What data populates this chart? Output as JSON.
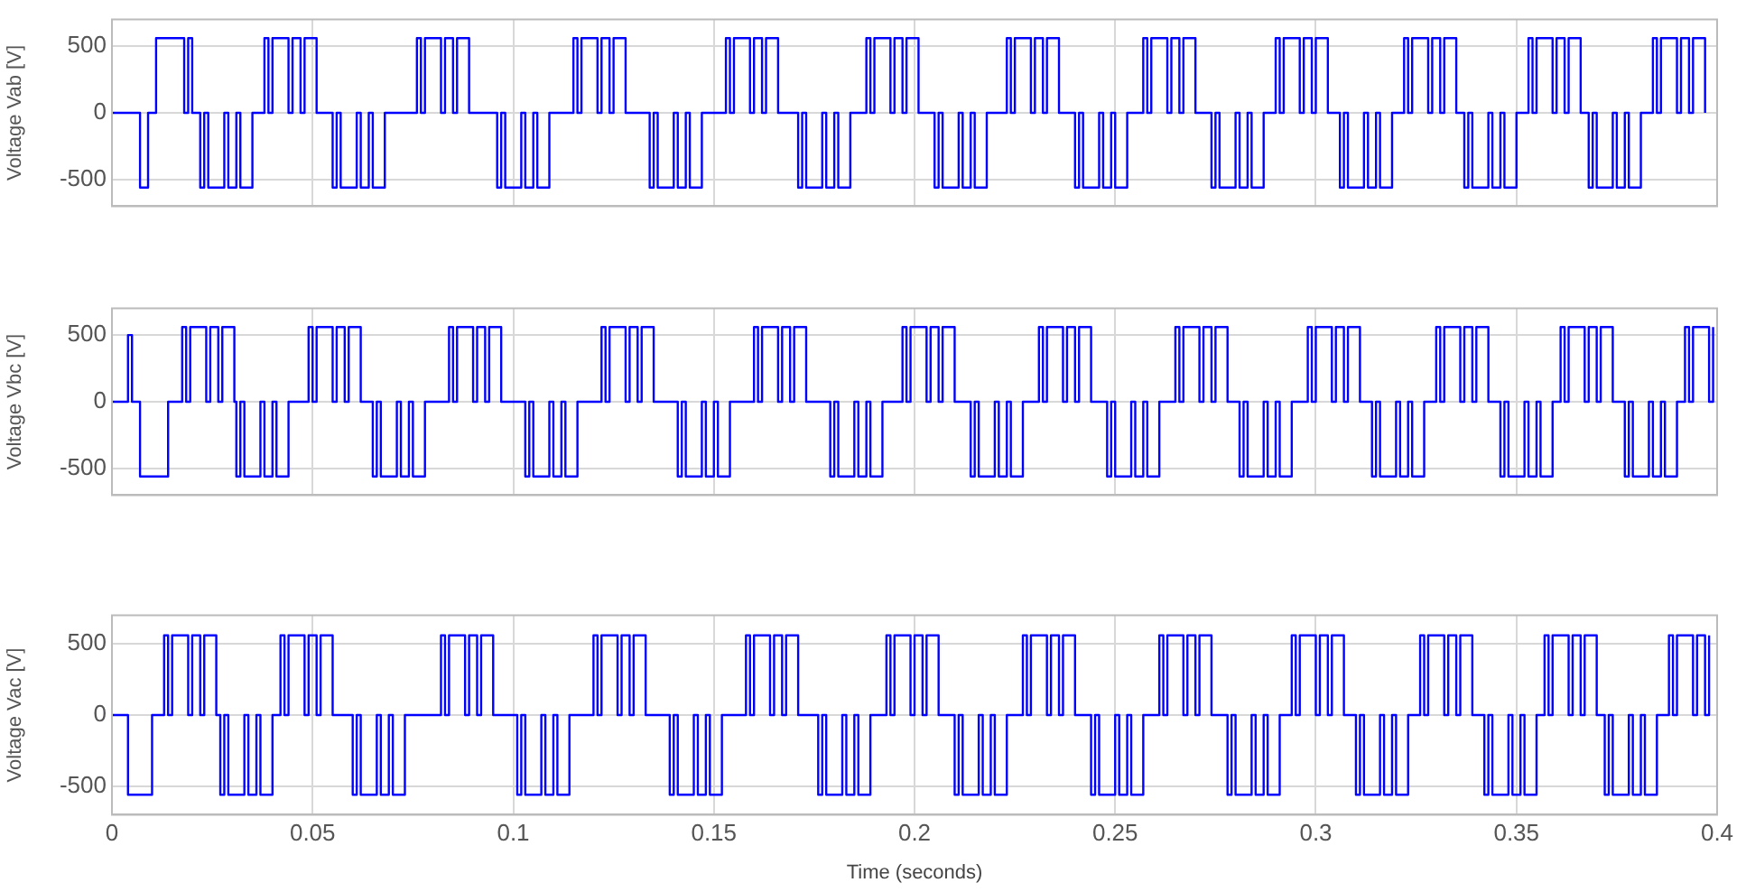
{
  "chart_data": [
    {
      "type": "step",
      "ylabel": "Voltage Vab [V]",
      "color": "#0000ff",
      "xlim": [
        0,
        0.4
      ],
      "xticks": [
        0,
        0.05,
        0.1,
        0.15,
        0.2,
        0.25,
        0.3,
        0.35,
        0.4
      ],
      "ylim": [
        -700,
        700
      ],
      "yticks": [
        -500,
        0,
        500
      ],
      "grid": true,
      "tick_labels": "y",
      "x": [
        0,
        0.007,
        0.009,
        0.011,
        0.018,
        0.019,
        0.02,
        0.022,
        0.023,
        0.024,
        0.028,
        0.029,
        0.031,
        0.032,
        0.035,
        0.038,
        0.039,
        0.04,
        0.044,
        0.045,
        0.047,
        0.048,
        0.051,
        0.055,
        0.056,
        0.057,
        0.061,
        0.062,
        0.064,
        0.065,
        0.068,
        0.076,
        0.077,
        0.078,
        0.082,
        0.083,
        0.085,
        0.086,
        0.089,
        0.096,
        0.097,
        0.098,
        0.102,
        0.103,
        0.105,
        0.106,
        0.109,
        0.115,
        0.116,
        0.117,
        0.121,
        0.122,
        0.124,
        0.125,
        0.128,
        0.134,
        0.135,
        0.136,
        0.14,
        0.141,
        0.143,
        0.144,
        0.147,
        0.153,
        0.154,
        0.155,
        0.159,
        0.16,
        0.162,
        0.163,
        0.166,
        0.171,
        0.172,
        0.173,
        0.177,
        0.178,
        0.18,
        0.181,
        0.184,
        0.188,
        0.189,
        0.19,
        0.194,
        0.195,
        0.197,
        0.198,
        0.201,
        0.205,
        0.206,
        0.207,
        0.211,
        0.212,
        0.214,
        0.215,
        0.218,
        0.223,
        0.224,
        0.225,
        0.229,
        0.23,
        0.232,
        0.233,
        0.236,
        0.24,
        0.241,
        0.242,
        0.246,
        0.247,
        0.249,
        0.25,
        0.253,
        0.257,
        0.258,
        0.259,
        0.263,
        0.264,
        0.266,
        0.267,
        0.27,
        0.274,
        0.275,
        0.276,
        0.28,
        0.281,
        0.283,
        0.284,
        0.287,
        0.29,
        0.291,
        0.292,
        0.296,
        0.297,
        0.299,
        0.3,
        0.303,
        0.306,
        0.307,
        0.308,
        0.312,
        0.313,
        0.315,
        0.316,
        0.319,
        0.322,
        0.323,
        0.324,
        0.328,
        0.329,
        0.331,
        0.332,
        0.335,
        0.337,
        0.338,
        0.339,
        0.343,
        0.344,
        0.346,
        0.347,
        0.35,
        0.353,
        0.354,
        0.355,
        0.359,
        0.36,
        0.362,
        0.363,
        0.366,
        0.368,
        0.369,
        0.37,
        0.374,
        0.375,
        0.377,
        0.378,
        0.381,
        0.384,
        0.385,
        0.386,
        0.39,
        0.391,
        0.393,
        0.394,
        0.397
      ],
      "values": [
        0,
        -560,
        0,
        560,
        0,
        560,
        0,
        -560,
        0,
        -560,
        0,
        -560,
        0,
        -560,
        0,
        560,
        0,
        560,
        0,
        560,
        0,
        560,
        0,
        -560,
        0,
        -560,
        0,
        -560,
        0,
        -560,
        0,
        560,
        0,
        560,
        0,
        560,
        0,
        560,
        0,
        -560,
        0,
        -560,
        0,
        -560,
        0,
        -560,
        0,
        560,
        0,
        560,
        0,
        560,
        0,
        560,
        0,
        -560,
        0,
        -560,
        0,
        -560,
        0,
        -560,
        0,
        560,
        0,
        560,
        0,
        560,
        0,
        560,
        0,
        -560,
        0,
        -560,
        0,
        -560,
        0,
        -560,
        0,
        560,
        0,
        560,
        0,
        560,
        0,
        560,
        0,
        -560,
        0,
        -560,
        0,
        -560,
        0,
        -560,
        0,
        560,
        0,
        560,
        0,
        560,
        0,
        560,
        0,
        -560,
        0,
        -560,
        0,
        -560,
        0,
        -560,
        0,
        560,
        0,
        560,
        0,
        560,
        0,
        560,
        0,
        -560,
        0,
        -560,
        0,
        -560,
        0,
        -560,
        0,
        560,
        0,
        560,
        0,
        560,
        0,
        560,
        0,
        -560,
        0,
        -560,
        0,
        -560,
        0,
        -560,
        0,
        560,
        0,
        560,
        0,
        560,
        0,
        560,
        0,
        -560,
        0,
        -560,
        0,
        -560,
        0,
        -560,
        0,
        560,
        0,
        560,
        0,
        560,
        0,
        560,
        0,
        -560,
        0,
        -560,
        0,
        -560,
        0,
        -560,
        0,
        560,
        0,
        560,
        0,
        560,
        0,
        560,
        0
      ]
    },
    {
      "type": "step",
      "ylabel": "Voltage Vbc [V]",
      "color": "#0000ff",
      "xlim": [
        0,
        0.4
      ],
      "xticks": [
        0,
        0.05,
        0.1,
        0.15,
        0.2,
        0.25,
        0.3,
        0.35,
        0.4
      ],
      "ylim": [
        -700,
        700
      ],
      "yticks": [
        -500,
        0,
        500
      ],
      "grid": true,
      "tick_labels": "y",
      "x": [
        0,
        0.004,
        0.005,
        0.007,
        0.014,
        0.0175,
        0.0185,
        0.0195,
        0.0235,
        0.0245,
        0.0265,
        0.0275,
        0.0305,
        0.031,
        0.032,
        0.033,
        0.037,
        0.038,
        0.04,
        0.041,
        0.044,
        0.049,
        0.05,
        0.051,
        0.055,
        0.056,
        0.058,
        0.059,
        0.062,
        0.065,
        0.066,
        0.067,
        0.071,
        0.072,
        0.074,
        0.075,
        0.078,
        0.084,
        0.085,
        0.086,
        0.09,
        0.091,
        0.093,
        0.094,
        0.097,
        0.103,
        0.104,
        0.105,
        0.109,
        0.11,
        0.112,
        0.113,
        0.116,
        0.122,
        0.123,
        0.124,
        0.128,
        0.129,
        0.131,
        0.132,
        0.135,
        0.141,
        0.142,
        0.143,
        0.147,
        0.148,
        0.15,
        0.151,
        0.154,
        0.16,
        0.161,
        0.162,
        0.166,
        0.167,
        0.169,
        0.17,
        0.173,
        0.179,
        0.18,
        0.181,
        0.185,
        0.186,
        0.188,
        0.189,
        0.192,
        0.197,
        0.198,
        0.199,
        0.203,
        0.204,
        0.206,
        0.207,
        0.21,
        0.214,
        0.215,
        0.216,
        0.22,
        0.221,
        0.223,
        0.224,
        0.227,
        0.231,
        0.232,
        0.233,
        0.237,
        0.238,
        0.24,
        0.241,
        0.244,
        0.248,
        0.249,
        0.25,
        0.254,
        0.255,
        0.257,
        0.258,
        0.261,
        0.265,
        0.266,
        0.267,
        0.271,
        0.272,
        0.274,
        0.275,
        0.278,
        0.281,
        0.282,
        0.283,
        0.287,
        0.288,
        0.29,
        0.291,
        0.294,
        0.298,
        0.299,
        0.3,
        0.304,
        0.305,
        0.307,
        0.308,
        0.311,
        0.314,
        0.315,
        0.316,
        0.32,
        0.321,
        0.323,
        0.324,
        0.327,
        0.33,
        0.331,
        0.332,
        0.336,
        0.337,
        0.339,
        0.34,
        0.343,
        0.346,
        0.347,
        0.348,
        0.352,
        0.353,
        0.355,
        0.356,
        0.359,
        0.361,
        0.362,
        0.363,
        0.367,
        0.368,
        0.37,
        0.371,
        0.374,
        0.377,
        0.378,
        0.379,
        0.383,
        0.384,
        0.386,
        0.387,
        0.39,
        0.392,
        0.393,
        0.394,
        0.398,
        0.399
      ],
      "values": [
        0,
        500,
        0,
        -560,
        0,
        560,
        0,
        560,
        0,
        560,
        0,
        560,
        0,
        -560,
        0,
        -560,
        0,
        -560,
        0,
        -560,
        0,
        560,
        0,
        560,
        0,
        560,
        0,
        560,
        0,
        -560,
        0,
        -560,
        0,
        -560,
        0,
        -560,
        0,
        560,
        0,
        560,
        0,
        560,
        0,
        560,
        0,
        -560,
        0,
        -560,
        0,
        -560,
        0,
        -560,
        0,
        560,
        0,
        560,
        0,
        560,
        0,
        560,
        0,
        -560,
        0,
        -560,
        0,
        -560,
        0,
        -560,
        0,
        560,
        0,
        560,
        0,
        560,
        0,
        560,
        0,
        -560,
        0,
        -560,
        0,
        -560,
        0,
        -560,
        0,
        560,
        0,
        560,
        0,
        560,
        0,
        560,
        0,
        -560,
        0,
        -560,
        0,
        -560,
        0,
        -560,
        0,
        560,
        0,
        560,
        0,
        560,
        0,
        560,
        0,
        -560,
        0,
        -560,
        0,
        -560,
        0,
        -560,
        0,
        560,
        0,
        560,
        0,
        560,
        0,
        560,
        0,
        -560,
        0,
        -560,
        0,
        -560,
        0,
        -560,
        0,
        560,
        0,
        560,
        0,
        560,
        0,
        560,
        0,
        -560,
        0,
        -560,
        0,
        -560,
        0,
        -560,
        0,
        560,
        0,
        560,
        0,
        560,
        0,
        560,
        0,
        -560,
        0,
        -560,
        0,
        -560,
        0,
        -560,
        0,
        560,
        0,
        560,
        0,
        560,
        0,
        560,
        0,
        -560,
        0,
        -560,
        0,
        -560,
        0,
        -560,
        0,
        560,
        0,
        560,
        0,
        560
      ]
    },
    {
      "type": "step",
      "ylabel": "Voltage Vac [V]",
      "xlabel": "Time (seconds)",
      "color": "#0000ff",
      "xlim": [
        0,
        0.4
      ],
      "xticks": [
        0,
        0.05,
        0.1,
        0.15,
        0.2,
        0.25,
        0.3,
        0.35,
        0.4
      ],
      "ylim": [
        -700,
        700
      ],
      "yticks": [
        -500,
        0,
        500
      ],
      "grid": true,
      "x": [
        0,
        0.004,
        0.01,
        0.013,
        0.014,
        0.015,
        0.019,
        0.02,
        0.022,
        0.023,
        0.026,
        0.027,
        0.028,
        0.029,
        0.033,
        0.034,
        0.036,
        0.037,
        0.04,
        0.042,
        0.043,
        0.044,
        0.048,
        0.049,
        0.051,
        0.052,
        0.055,
        0.06,
        0.061,
        0.062,
        0.066,
        0.067,
        0.069,
        0.07,
        0.073,
        0.082,
        0.083,
        0.084,
        0.088,
        0.089,
        0.091,
        0.092,
        0.095,
        0.101,
        0.102,
        0.103,
        0.107,
        0.108,
        0.11,
        0.111,
        0.114,
        0.12,
        0.121,
        0.122,
        0.126,
        0.127,
        0.129,
        0.13,
        0.133,
        0.139,
        0.14,
        0.141,
        0.145,
        0.146,
        0.148,
        0.149,
        0.152,
        0.158,
        0.159,
        0.16,
        0.164,
        0.165,
        0.167,
        0.168,
        0.171,
        0.176,
        0.177,
        0.178,
        0.182,
        0.183,
        0.185,
        0.186,
        0.189,
        0.193,
        0.194,
        0.195,
        0.199,
        0.2,
        0.202,
        0.203,
        0.206,
        0.21,
        0.211,
        0.212,
        0.216,
        0.217,
        0.219,
        0.22,
        0.223,
        0.227,
        0.228,
        0.229,
        0.233,
        0.234,
        0.236,
        0.237,
        0.24,
        0.244,
        0.245,
        0.246,
        0.25,
        0.251,
        0.253,
        0.254,
        0.257,
        0.261,
        0.262,
        0.263,
        0.267,
        0.268,
        0.27,
        0.271,
        0.274,
        0.278,
        0.279,
        0.28,
        0.284,
        0.285,
        0.287,
        0.288,
        0.291,
        0.294,
        0.295,
        0.296,
        0.3,
        0.301,
        0.303,
        0.304,
        0.307,
        0.31,
        0.311,
        0.312,
        0.316,
        0.317,
        0.319,
        0.32,
        0.323,
        0.326,
        0.327,
        0.328,
        0.332,
        0.333,
        0.335,
        0.336,
        0.339,
        0.342,
        0.343,
        0.344,
        0.348,
        0.349,
        0.351,
        0.352,
        0.355,
        0.357,
        0.358,
        0.359,
        0.363,
        0.364,
        0.366,
        0.367,
        0.37,
        0.372,
        0.373,
        0.374,
        0.378,
        0.379,
        0.381,
        0.382,
        0.385,
        0.388,
        0.389,
        0.39,
        0.394,
        0.395,
        0.397,
        0.398
      ],
      "values": [
        0,
        -560,
        0,
        560,
        0,
        560,
        0,
        560,
        0,
        560,
        0,
        -560,
        0,
        -560,
        0,
        -560,
        0,
        -560,
        0,
        560,
        0,
        560,
        0,
        560,
        0,
        560,
        0,
        -560,
        0,
        -560,
        0,
        -560,
        0,
        -560,
        0,
        560,
        0,
        560,
        0,
        560,
        0,
        560,
        0,
        -560,
        0,
        -560,
        0,
        -560,
        0,
        -560,
        0,
        560,
        0,
        560,
        0,
        560,
        0,
        560,
        0,
        -560,
        0,
        -560,
        0,
        -560,
        0,
        -560,
        0,
        560,
        0,
        560,
        0,
        560,
        0,
        560,
        0,
        -560,
        0,
        -560,
        0,
        -560,
        0,
        -560,
        0,
        560,
        0,
        560,
        0,
        560,
        0,
        560,
        0,
        -560,
        0,
        -560,
        0,
        -560,
        0,
        -560,
        0,
        560,
        0,
        560,
        0,
        560,
        0,
        560,
        0,
        -560,
        0,
        -560,
        0,
        -560,
        0,
        -560,
        0,
        560,
        0,
        560,
        0,
        560,
        0,
        560,
        0,
        -560,
        0,
        -560,
        0,
        -560,
        0,
        -560,
        0,
        560,
        0,
        560,
        0,
        560,
        0,
        560,
        0,
        -560,
        0,
        -560,
        0,
        -560,
        0,
        -560,
        0,
        560,
        0,
        560,
        0,
        560,
        0,
        560,
        0,
        -560,
        0,
        -560,
        0,
        -560,
        0,
        -560,
        0,
        560,
        0,
        560,
        0,
        560,
        0,
        560,
        0,
        -560,
        0,
        -560,
        0,
        -560,
        0,
        -560,
        0,
        560,
        0,
        560,
        0,
        560,
        0,
        560
      ]
    }
  ]
}
